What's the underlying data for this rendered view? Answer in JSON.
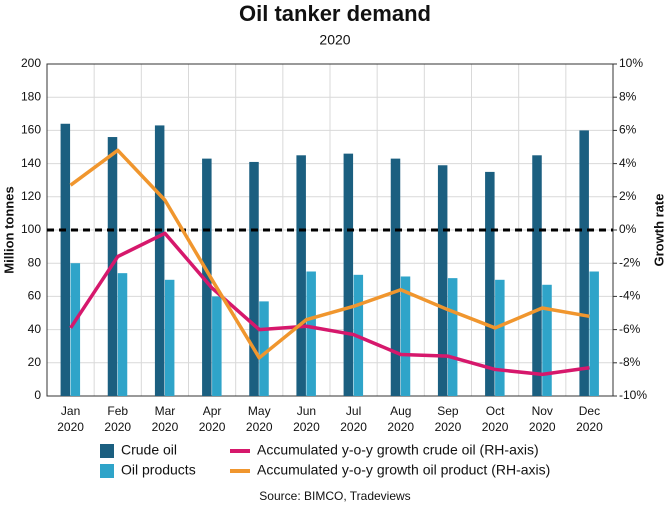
{
  "chart_data": {
    "type": "bar_line",
    "title": "Oil tanker demand",
    "subtitle": "2020",
    "y_label": "Million tonnes",
    "y2_label": "Growth rate",
    "source": "Source: BIMCO, Tradeviews",
    "categories": [
      "Jan 2020",
      "Feb 2020",
      "Mar 2020",
      "Apr 2020",
      "May 2020",
      "Jun 2020",
      "Jul 2020",
      "Aug 2020",
      "Sep 2020",
      "Oct 2020",
      "Nov 2020",
      "Dec 2020"
    ],
    "series": [
      {
        "name": "Crude oil",
        "kind": "bar",
        "color": "#1b5f80",
        "values": [
          164,
          156,
          163,
          143,
          141,
          145,
          146,
          143,
          139,
          135,
          145,
          160
        ]
      },
      {
        "name": "Oil products",
        "kind": "bar",
        "color": "#2fa4c9",
        "values": [
          80,
          74,
          70,
          60,
          57,
          75,
          73,
          72,
          71,
          70,
          67,
          75
        ]
      },
      {
        "name": "Accumulated y-o-y growth crude oil (RH-axis)",
        "kind": "line",
        "axis": "y2",
        "color": "#d6186c",
        "values": [
          -5.9,
          -1.6,
          -0.2,
          -3.5,
          -6.0,
          -5.8,
          -6.3,
          -7.5,
          -7.6,
          -8.4,
          -8.7,
          -8.3
        ]
      },
      {
        "name": "Accumulated y-o-y growth oil product (RH-axis)",
        "kind": "line",
        "axis": "y2",
        "color": "#f0962e",
        "values": [
          2.7,
          4.8,
          1.8,
          -3.0,
          -7.7,
          -5.4,
          -4.6,
          -3.6,
          -4.8,
          -5.9,
          -4.7,
          -5.2
        ]
      }
    ],
    "ylim": [
      0,
      200
    ],
    "yticks": [
      0,
      20,
      40,
      60,
      80,
      100,
      120,
      140,
      160,
      180,
      200
    ],
    "y2lim": [
      -10,
      10
    ],
    "y2ticks": [
      {
        "value": -10,
        "label": "-10%"
      },
      {
        "value": -8,
        "label": "-8%"
      },
      {
        "value": -6,
        "label": "-6%"
      },
      {
        "value": -4,
        "label": "-4%"
      },
      {
        "value": -2,
        "label": "-2%"
      },
      {
        "value": 0,
        "label": "0%"
      },
      {
        "value": 2,
        "label": "2%"
      },
      {
        "value": 4,
        "label": "4%"
      },
      {
        "value": 6,
        "label": "6%"
      },
      {
        "value": 8,
        "label": "8%"
      },
      {
        "value": 10,
        "label": "10%"
      }
    ],
    "y2_reference": 0,
    "grid": true,
    "legend": "bottom"
  }
}
